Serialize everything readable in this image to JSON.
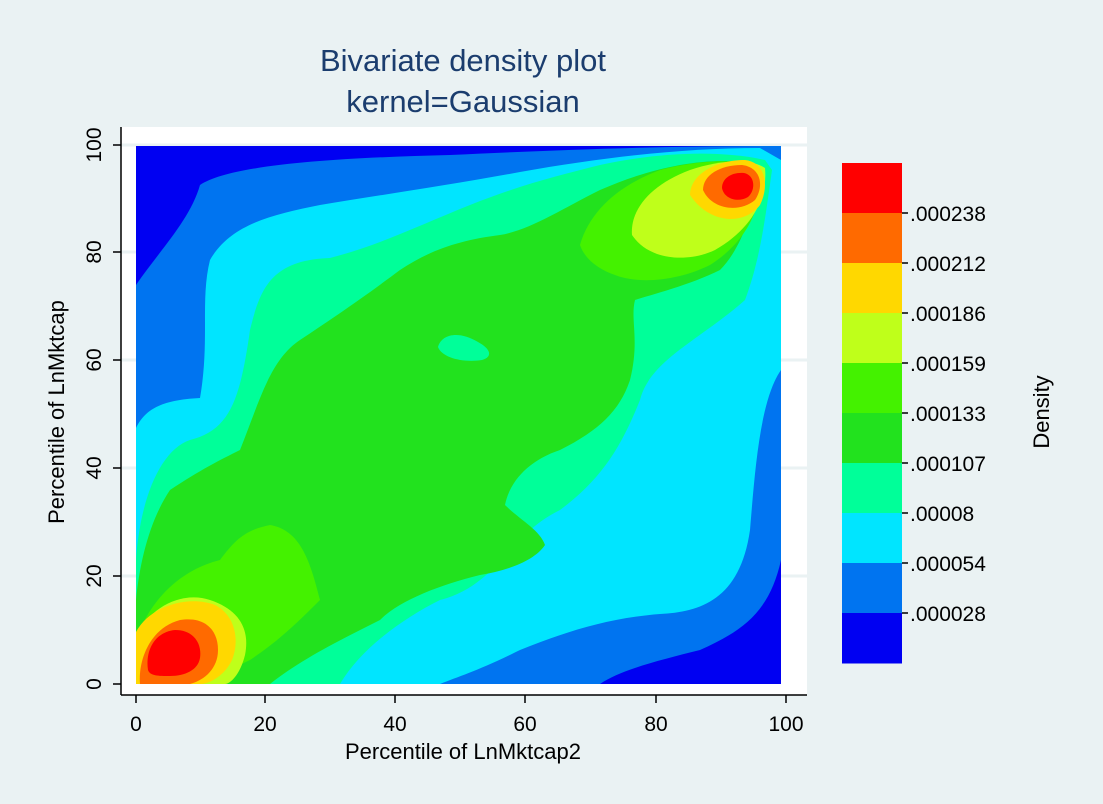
{
  "chart_data": {
    "type": "heatmap",
    "title": "Bivariate density plot",
    "subtitle": "kernel=Gaussian",
    "xlabel": "Percentile of LnMktcap2",
    "ylabel": "Percentile of LnMktcap",
    "xlim": [
      0,
      100
    ],
    "ylim": [
      0,
      100
    ],
    "xticks": [
      "0",
      "20",
      "40",
      "60",
      "80",
      "100"
    ],
    "yticks": [
      "0",
      "20",
      "40",
      "60",
      "80",
      "100"
    ],
    "legend": {
      "title": "Density",
      "placement": "right",
      "labels": [
        ".000238",
        ".000212",
        ".000186",
        ".000159",
        ".000133",
        ".000107",
        ".00008",
        ".000054",
        ".000028"
      ],
      "colors": [
        "#ff0000",
        "#ff6a00",
        "#ffd800",
        "#bfff1a",
        "#44f200",
        "#22e21e",
        "#00ff99",
        "#00e5ff",
        "#0074f0",
        "#0000f2"
      ]
    },
    "grid": true,
    "density_peaks": [
      {
        "x": 6,
        "y": 6,
        "level": "max"
      },
      {
        "x": 92,
        "y": 91,
        "level": "high"
      }
    ]
  }
}
